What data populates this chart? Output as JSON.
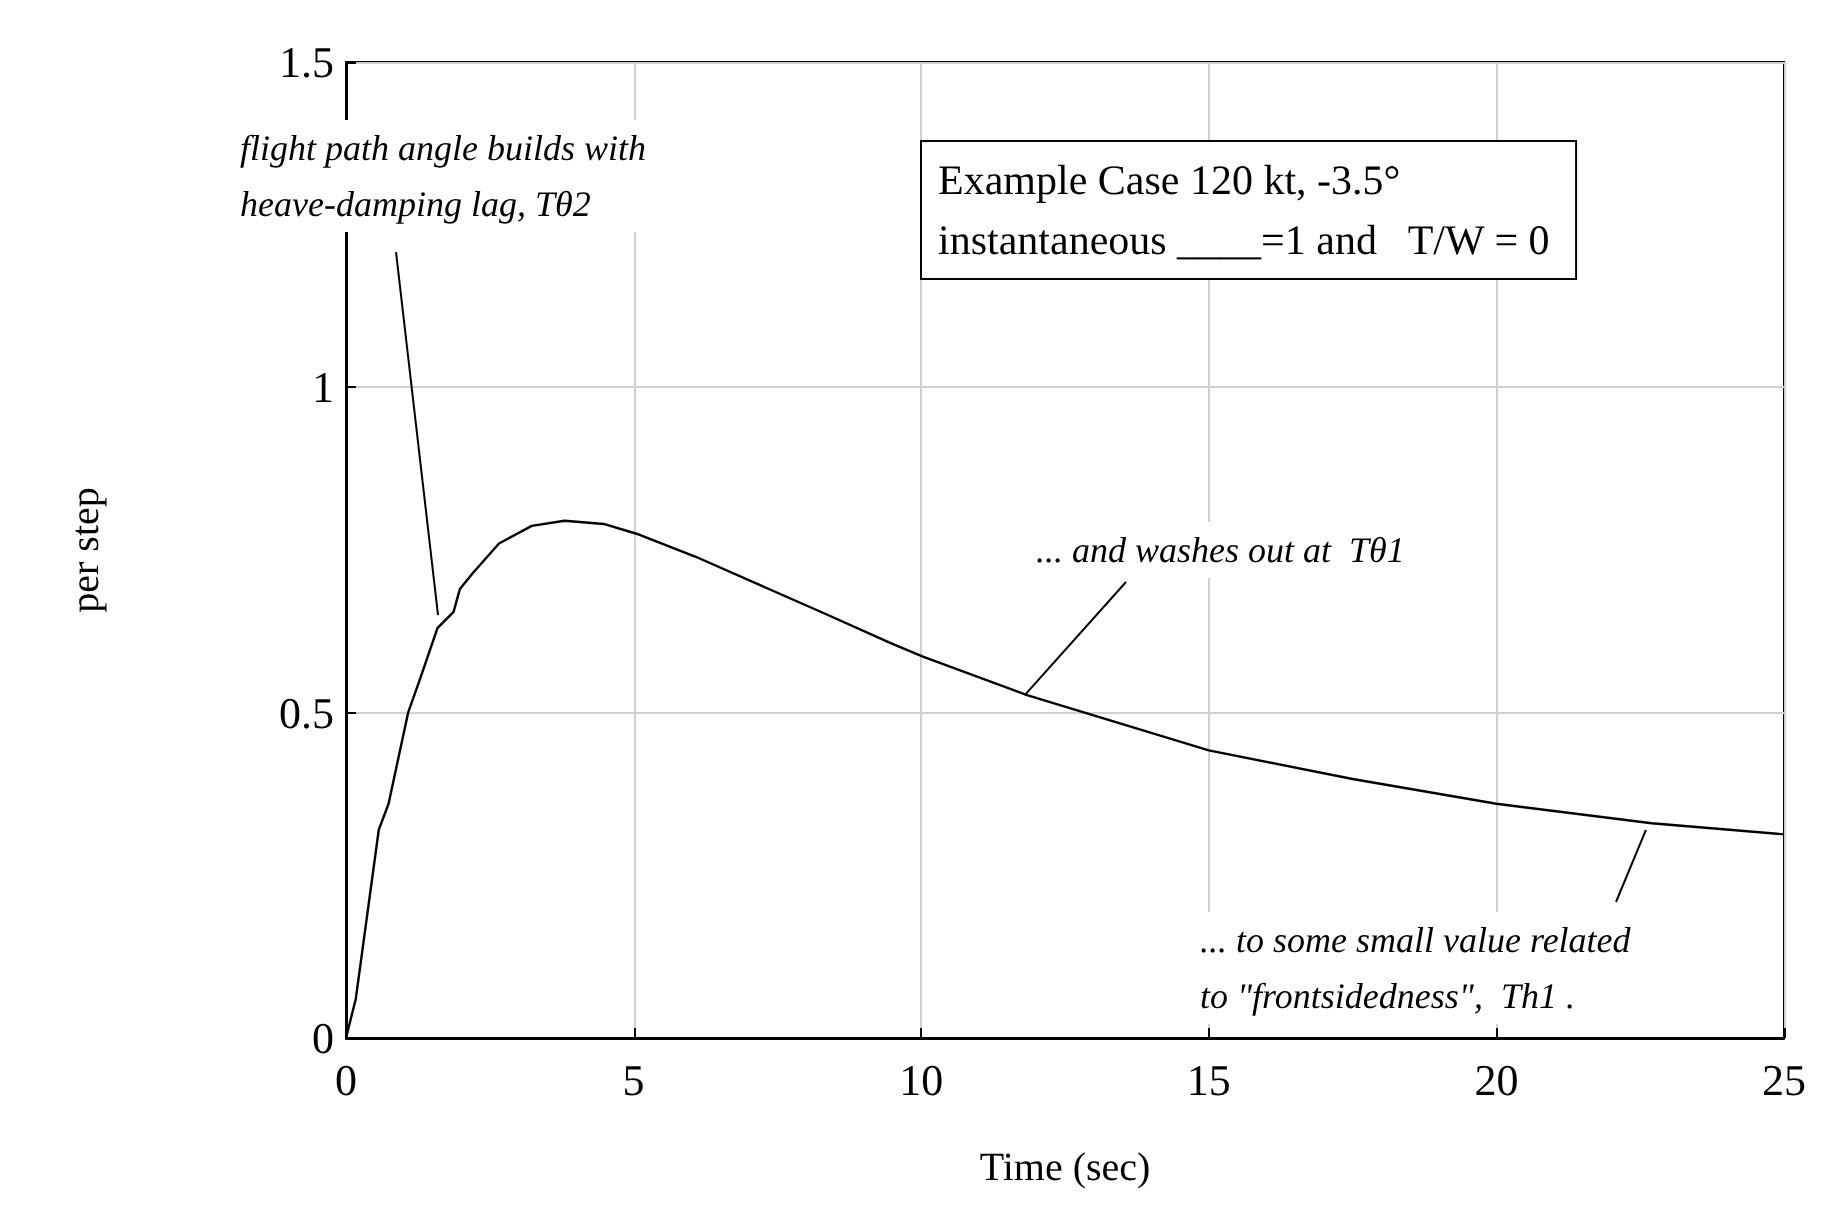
{
  "chart_data": {
    "type": "line",
    "xlabel": "Time (sec)",
    "ylabel": "per step",
    "x": [
      0,
      0.17,
      0.57,
      0.74,
      1.08,
      1.3,
      1.59,
      1.87,
      1.98,
      2.21,
      2.66,
      3.23,
      3.8,
      4.48,
      5.05,
      6.07,
      7.2,
      8.33,
      9.47,
      10.03,
      11.84,
      15,
      17.5,
      20,
      22.7,
      25
    ],
    "series": [
      {
        "color": "#000000",
        "values": [
          0,
          0.06,
          0.32,
          0.36,
          0.5,
          0.555,
          0.63,
          0.655,
          0.69,
          0.715,
          0.76,
          0.787,
          0.795,
          0.79,
          0.775,
          0.74,
          0.696,
          0.652,
          0.607,
          0.586,
          0.527,
          0.442,
          0.398,
          0.36,
          0.33,
          0.313
        ]
      }
    ],
    "xlim": [
      0,
      25
    ],
    "xticks": [
      0,
      5,
      10,
      15,
      20,
      25
    ],
    "ylim": [
      0,
      1.5
    ],
    "yticks": [
      0,
      0.5,
      1,
      1.5
    ],
    "grid": true,
    "annotations": [
      "Example Case 120 kt, -3.5°\ninstantaneous ____=1 and   T/W = 0",
      {
        "text": "flight path angle builds with\nheave-damping lag, Tθ2",
        "x": 1.6,
        "y": 0.65
      },
      {
        "text": "... and washes out at  Tθ1",
        "x": 11.8,
        "y": 0.527
      },
      {
        "text": "... to some small value related\nto \"frontsidedness\",  Th1 .",
        "x": 22.6,
        "y": 0.32
      }
    ]
  }
}
